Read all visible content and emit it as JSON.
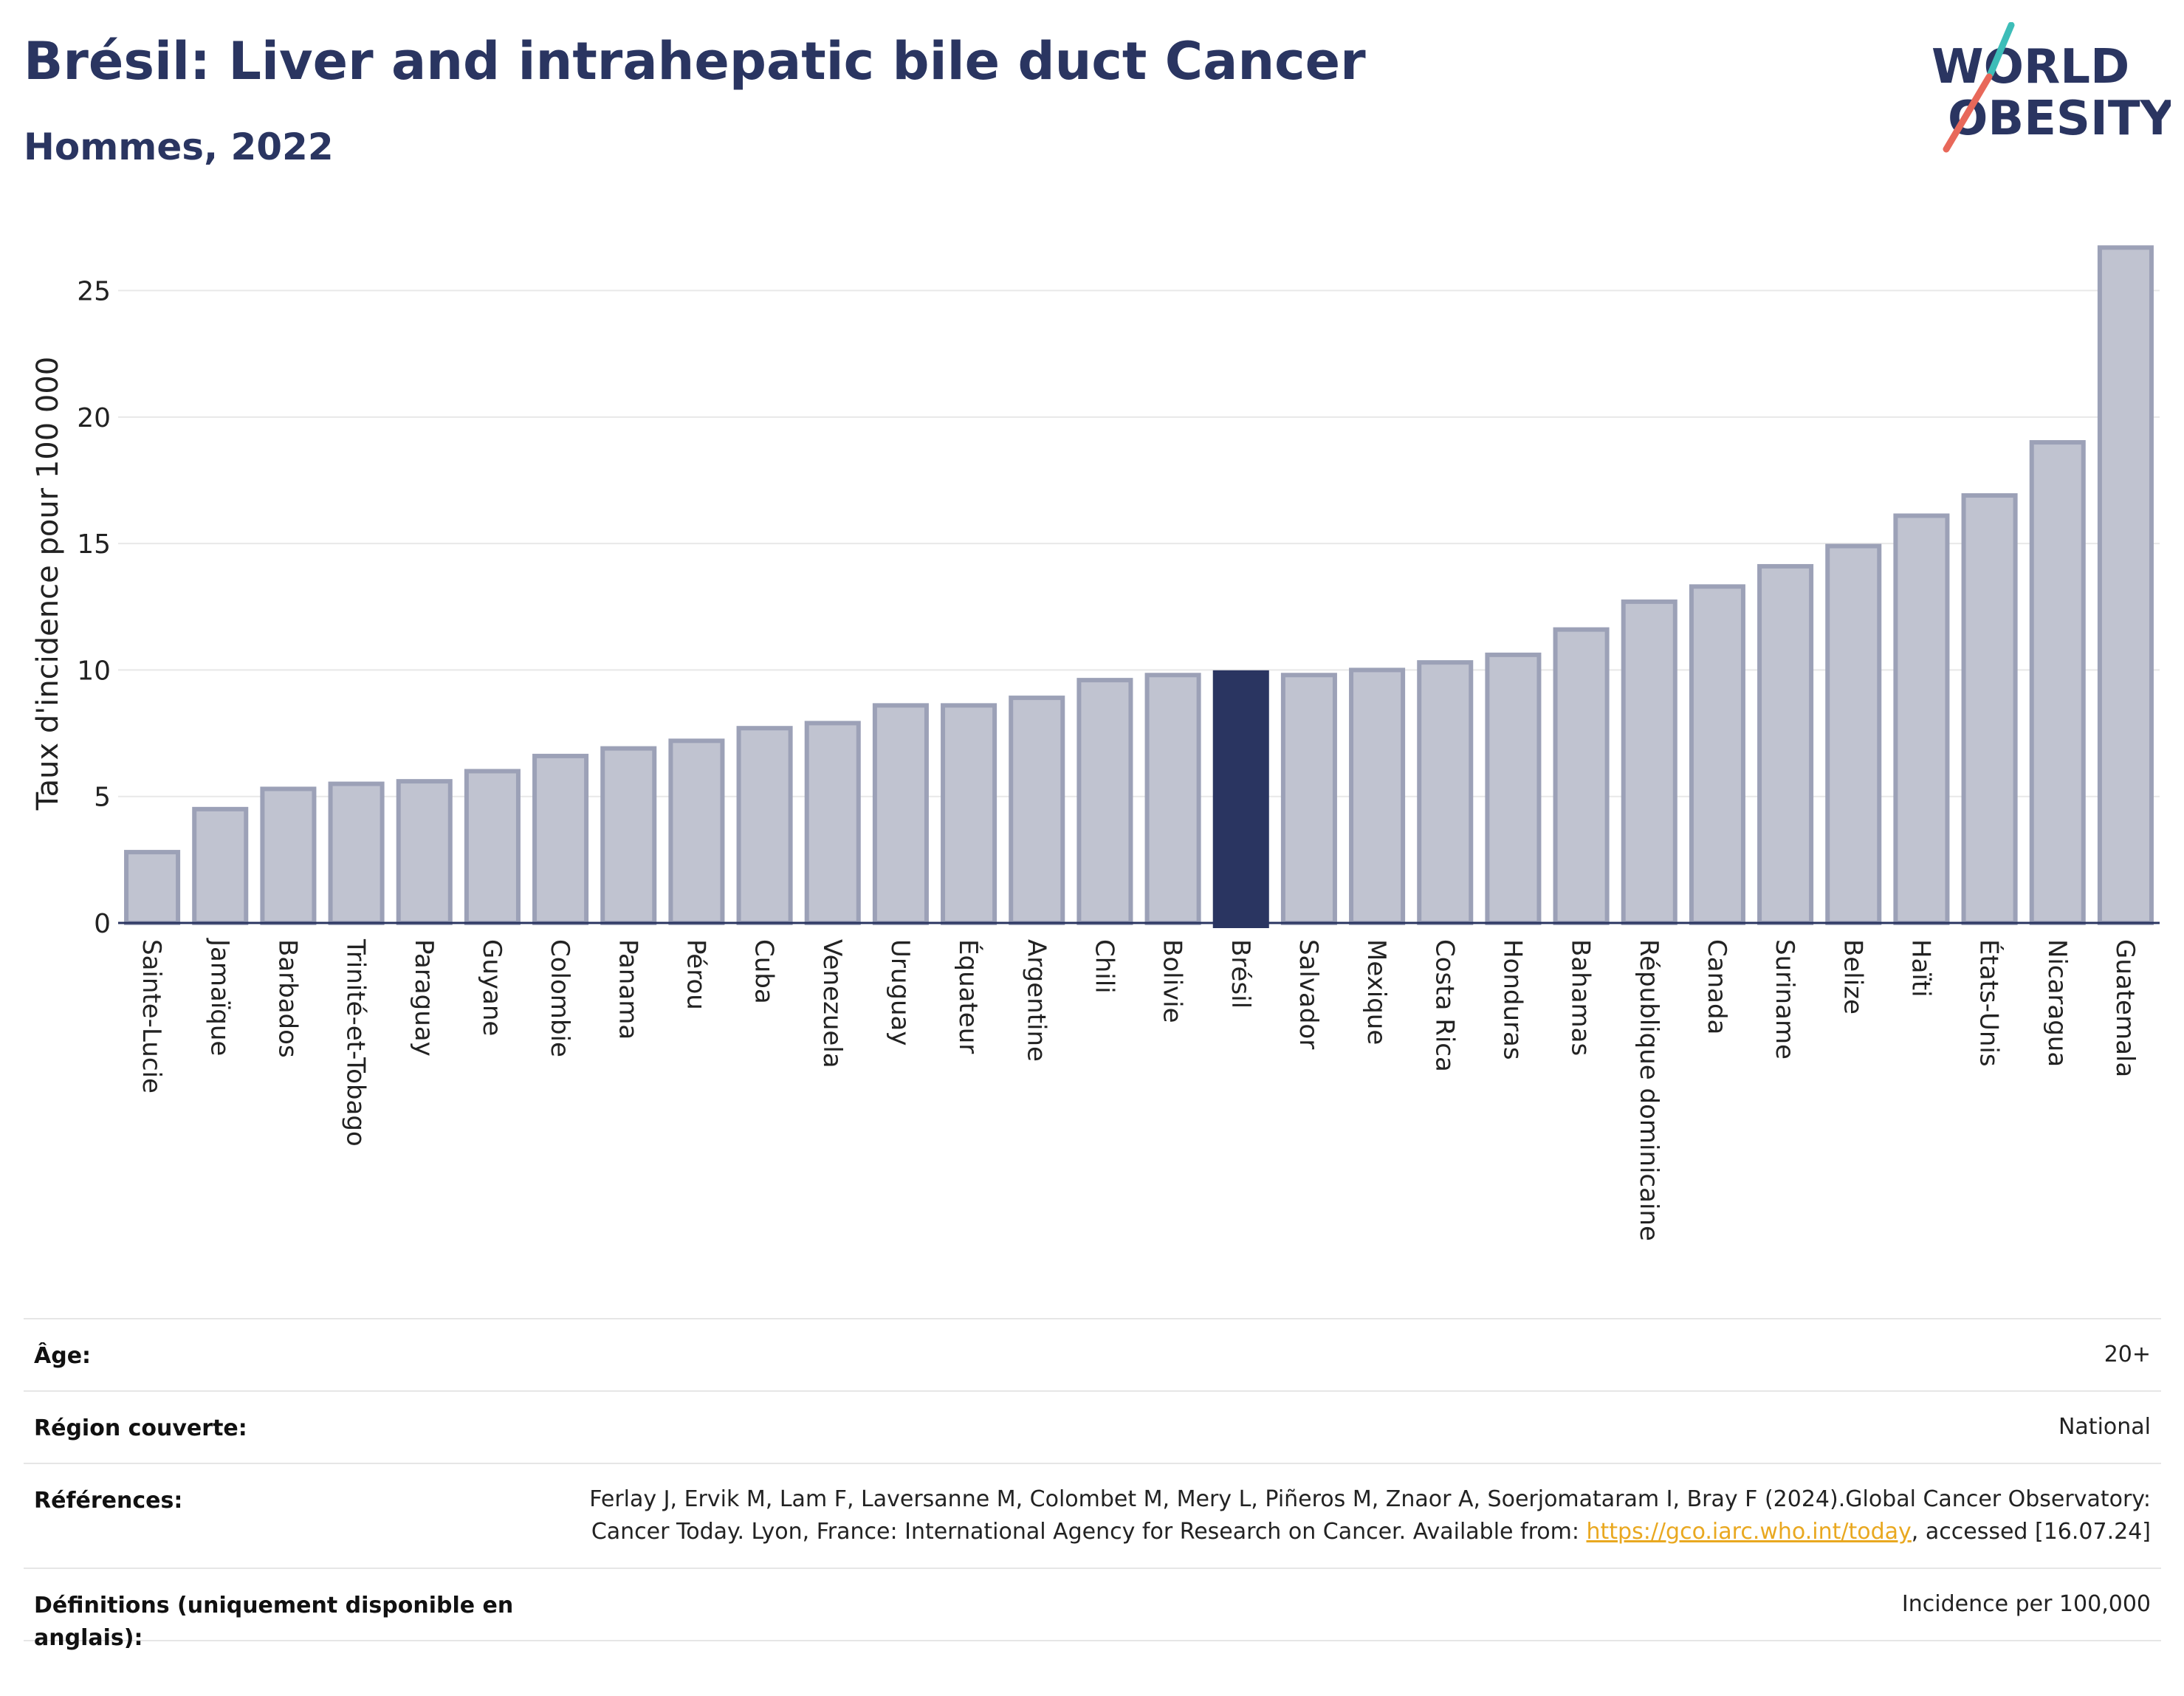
{
  "header": {
    "title": "Brésil: Liver and intrahepatic bile duct Cancer",
    "subtitle": "Hommes, 2022"
  },
  "logo": {
    "line1": "WORLD",
    "line2": "OBESITY",
    "colors": {
      "text": "#2a3561",
      "accent_teal": "#3dbdb8",
      "accent_red": "#e8685a"
    }
  },
  "chart_data": {
    "type": "bar",
    "title": "",
    "xlabel": "",
    "ylabel": "Taux d'incidence pour 100 000",
    "ylim": [
      0,
      27
    ],
    "yticks": [
      0,
      5,
      10,
      15,
      20,
      25
    ],
    "grid": true,
    "highlight": "Brésil",
    "colors": {
      "bar": "#c0c3d0",
      "bar_edge": "#9ca1b7",
      "highlight": "#2a3561"
    },
    "categories": [
      "Sainte-Lucie",
      "Jamaïque",
      "Barbados",
      "Trinité-et-Tobago",
      "Paraguay",
      "Guyane",
      "Colombie",
      "Panama",
      "Pérou",
      "Cuba",
      "Venezuela",
      "Uruguay",
      "Équateur",
      "Argentine",
      "Chili",
      "Bolivie",
      "Brésil",
      "Salvador",
      "Mexique",
      "Costa Rica",
      "Honduras",
      "Bahamas",
      "République dominicaine",
      "Canada",
      "Suriname",
      "Belize",
      "Haïti",
      "États-Unis",
      "Nicaragua",
      "Guatemala"
    ],
    "values": [
      2.8,
      4.5,
      5.3,
      5.5,
      5.6,
      6.0,
      6.6,
      6.9,
      7.2,
      7.7,
      7.9,
      8.6,
      8.6,
      8.9,
      9.6,
      9.8,
      9.9,
      9.8,
      10.0,
      10.3,
      10.6,
      11.6,
      12.7,
      13.3,
      14.1,
      14.9,
      16.1,
      16.9,
      19.0,
      26.7
    ]
  },
  "info": {
    "age": {
      "label": "Âge:",
      "value": "20+"
    },
    "region": {
      "label": "Région couverte:",
      "value": "National"
    },
    "references": {
      "label": "Références:",
      "text1": "Ferlay J, Ervik M, Lam F, Laversanne M, Colombet M, Mery L, Piñeros M, Znaor A, Soerjomataram I, Bray F (2024).Global Cancer Observatory: Cancer Today. Lyon, France: International Agency for Research on Cancer. Available from: ",
      "link": "https://gco.iarc.who.int/today",
      "text2": ", accessed [16.07.24]"
    },
    "definitions": {
      "label": "Définitions (uniquement disponible en anglais):",
      "value": "Incidence per 100,000"
    }
  }
}
